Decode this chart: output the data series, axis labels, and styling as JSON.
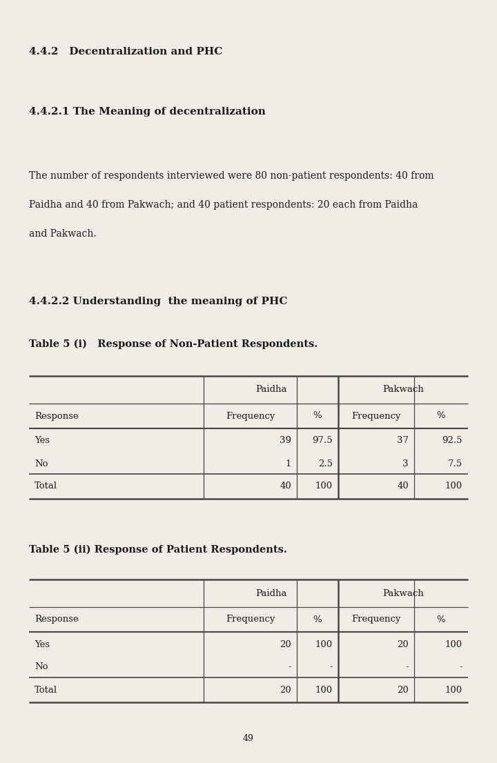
{
  "heading1": "4.4.2   Decentralization and PHC",
  "heading2": "4.4.2.1 The Meaning of decentralization",
  "para_line1": "The number of respondents interviewed were 80 non-patient respondents: 40 from",
  "para_line2": "Paidha and 40 from Pakwach; and 40 patient respondents: 20 each from Paidha",
  "para_line3": "and Pakwach.",
  "heading3": "4.4.2.2 Understanding  the meaning of PHC",
  "table1_title": "Table 5 (i)   Response of Non-Patient Respondents.",
  "table2_title": "Table 5 (ii) Response of Patient Respondents.",
  "table1": {
    "col_headers": [
      "Response",
      "Frequency",
      "%",
      "Frequency",
      "%"
    ],
    "group_headers": [
      "Paidha",
      "Pakwach"
    ],
    "rows": [
      [
        "Yes",
        "39",
        "97.5",
        "37",
        "92.5"
      ],
      [
        "No",
        "1",
        "2.5",
        "3",
        "7.5"
      ]
    ],
    "total_row": [
      "Total",
      "40",
      "100",
      "40",
      "100"
    ]
  },
  "table2": {
    "col_headers": [
      "Response",
      "Frequency",
      "%",
      "Frequency",
      "%"
    ],
    "group_headers": [
      "Paidha",
      "Pakwach"
    ],
    "rows": [
      [
        "Yes",
        "20",
        "100",
        "20",
        "100"
      ],
      [
        "No",
        "-",
        "-",
        "-",
        "-"
      ]
    ],
    "total_row": [
      "Total",
      "20",
      "100",
      "20",
      "100"
    ]
  },
  "page_number": "49",
  "bg_color": "#f0ede8",
  "text_color": "#1a1a1a",
  "line_color": "#444444"
}
